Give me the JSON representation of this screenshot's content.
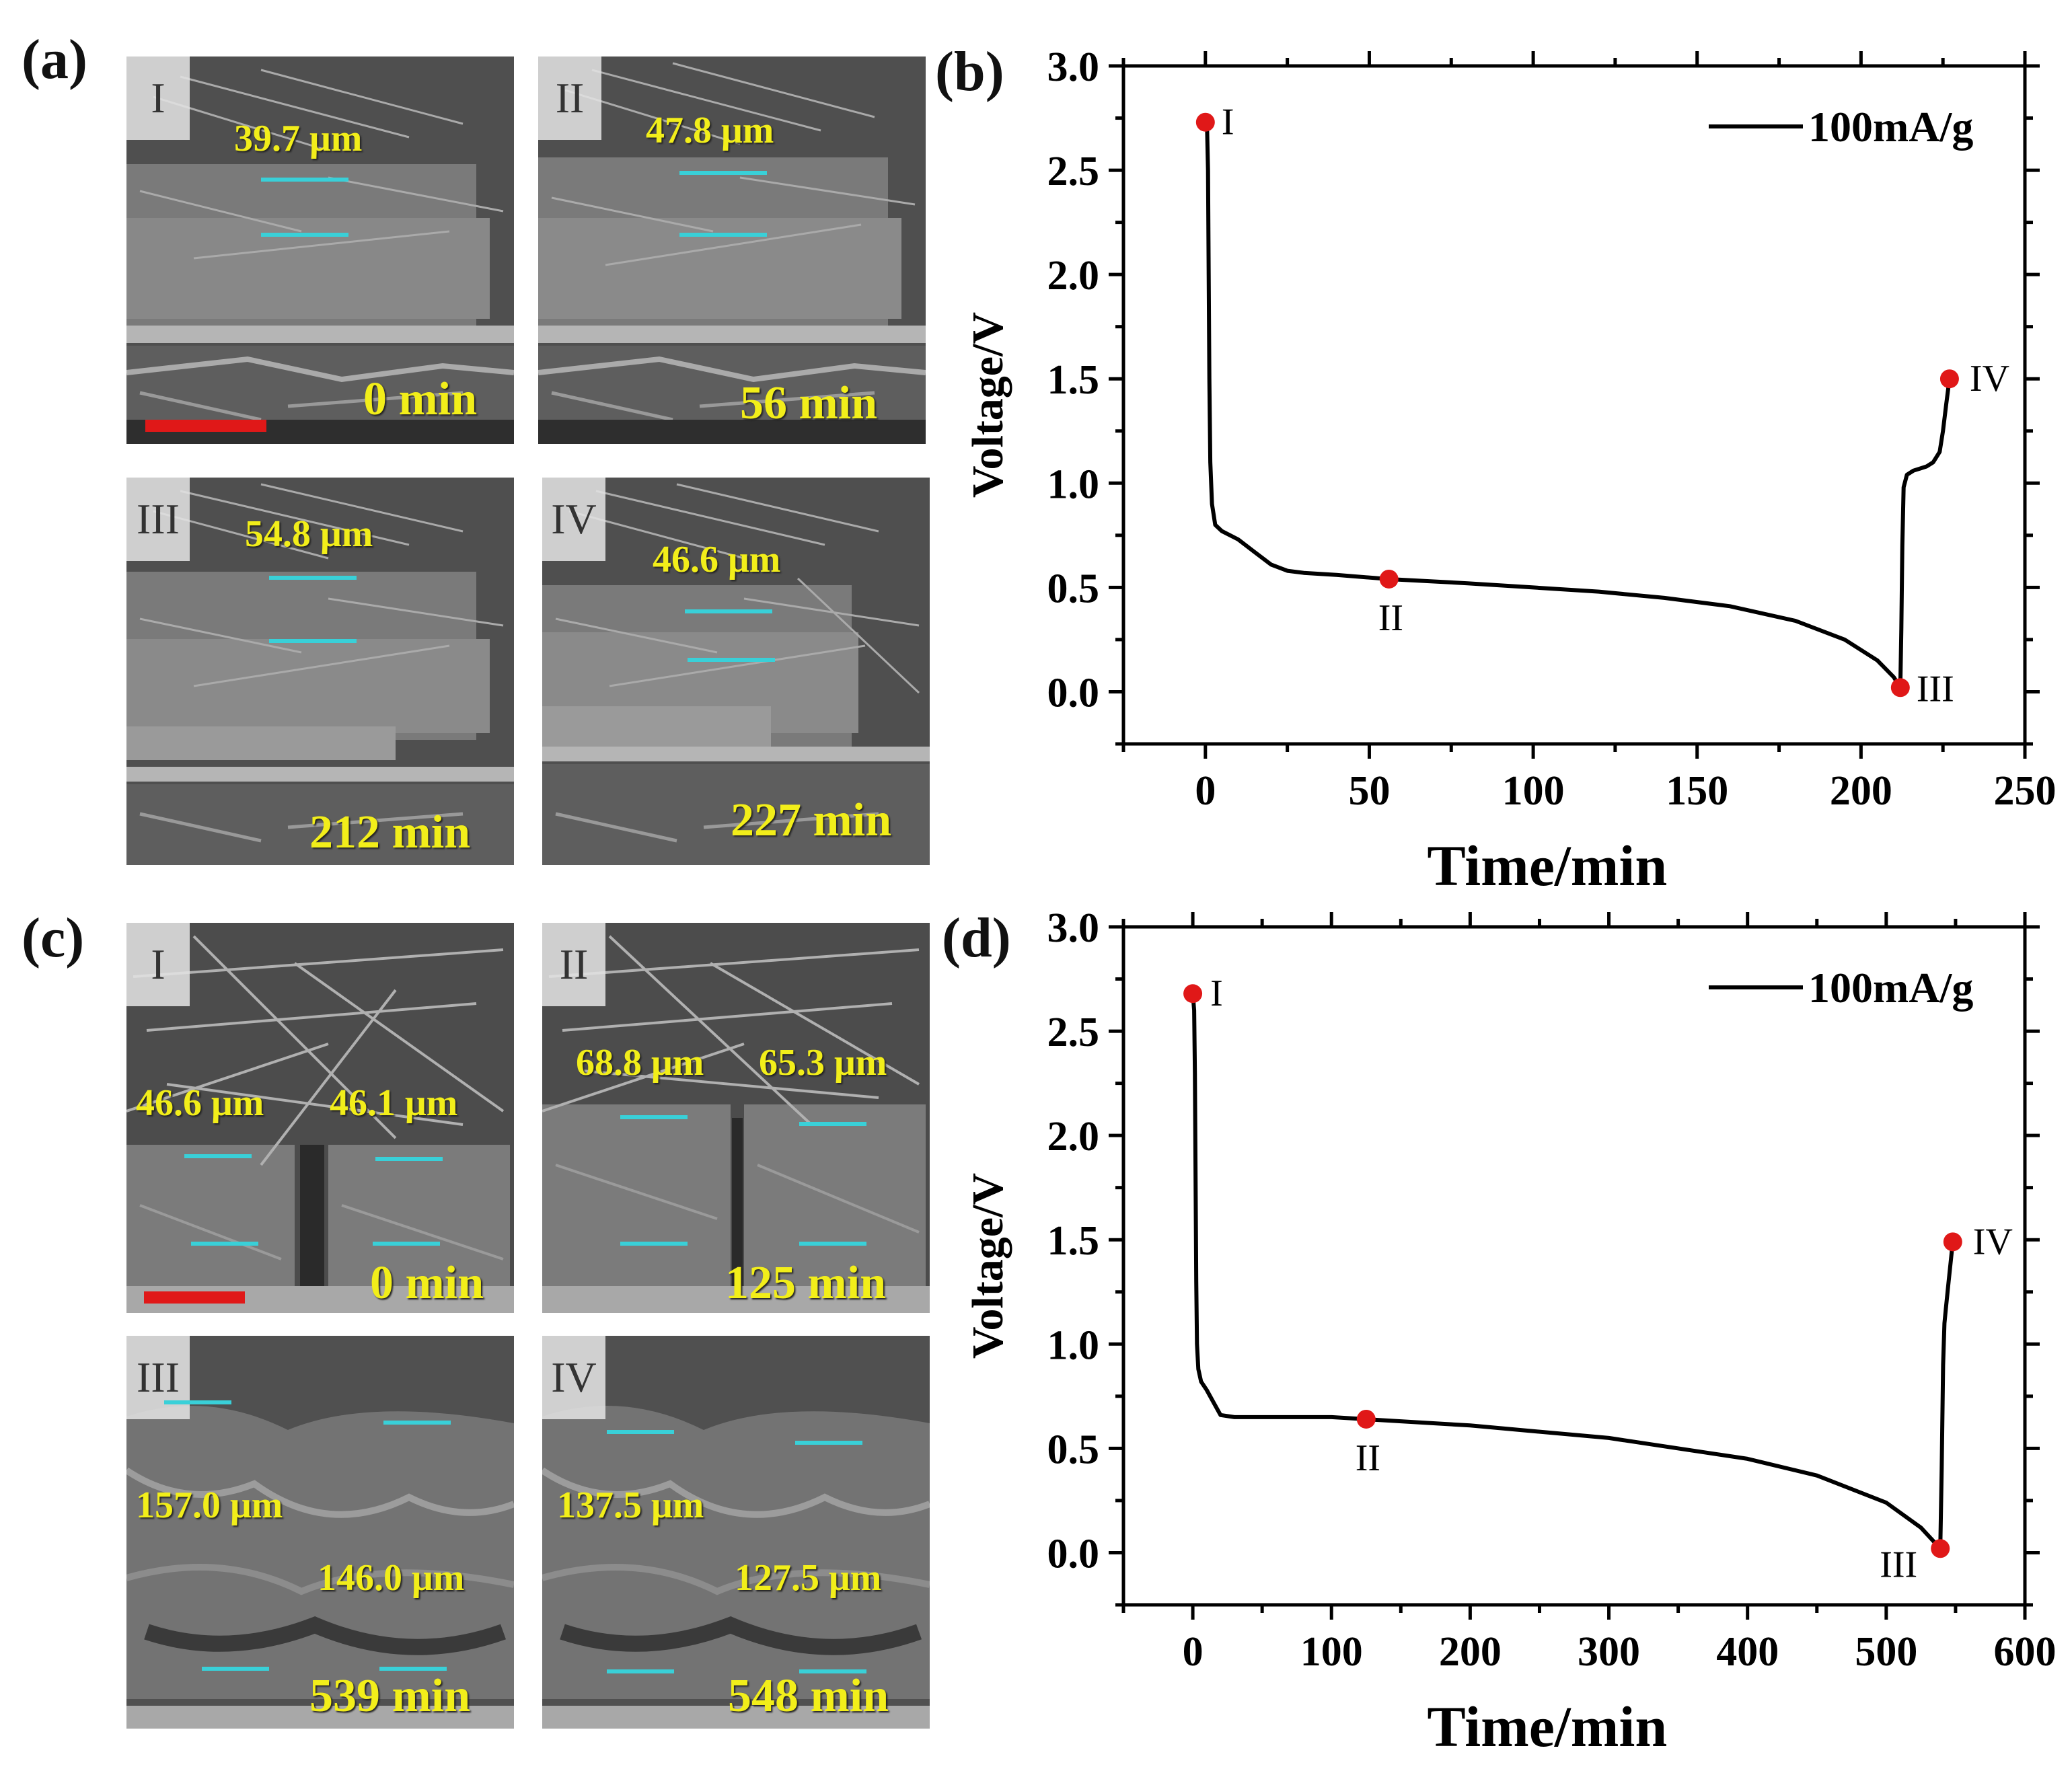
{
  "panels": {
    "a": {
      "letter": "(a)"
    },
    "b": {
      "letter": "(b)"
    },
    "c": {
      "letter": "(c)"
    },
    "d": {
      "letter": "(d)"
    }
  },
  "sem_a": [
    {
      "roman": "I",
      "measurements": [
        "39.7 μm"
      ],
      "time": "0 min",
      "has_scalebar": true
    },
    {
      "roman": "II",
      "measurements": [
        "47.8 μm"
      ],
      "time": "56 min",
      "has_scalebar": false
    },
    {
      "roman": "III",
      "measurements": [
        "54.8 μm"
      ],
      "time": "212 min",
      "has_scalebar": false
    },
    {
      "roman": "IV",
      "measurements": [
        "46.6 μm"
      ],
      "time": "227 min",
      "has_scalebar": false
    }
  ],
  "sem_c": [
    {
      "roman": "I",
      "measurements": [
        "46.6 μm",
        "46.1 μm"
      ],
      "time": "0 min",
      "has_scalebar": true
    },
    {
      "roman": "II",
      "measurements": [
        "68.8 μm",
        "65.3 μm"
      ],
      "time": "125 min",
      "has_scalebar": false
    },
    {
      "roman": "III",
      "measurements": [
        "157.0 μm",
        "146.0 μm"
      ],
      "time": "539 min",
      "has_scalebar": false
    },
    {
      "roman": "IV",
      "measurements": [
        "137.5 μm",
        "127.5 μm"
      ],
      "time": "548 min",
      "has_scalebar": false
    }
  ],
  "colors": {
    "curve": "#000000",
    "marker": "#e01818",
    "measure_text": "#f2ee1a",
    "measure_line": "#39d0d8",
    "scalebar": "#e01818"
  },
  "chart_data": [
    {
      "panel": "b",
      "type": "line",
      "xlabel": "Time/min",
      "ylabel": "Voltage/V",
      "xlim": [
        -25,
        250
      ],
      "ylim": [
        -0.25,
        3.0
      ],
      "xticks": [
        0,
        50,
        100,
        150,
        200,
        250
      ],
      "yticks": [
        0.0,
        0.5,
        1.0,
        1.5,
        2.0,
        2.5,
        3.0
      ],
      "legend": {
        "label": "100mA/g",
        "position": "top-right"
      },
      "series": [
        {
          "name": "100mA/g",
          "x": [
            0,
            0.5,
            0.8,
            1.0,
            1.2,
            1.5,
            2,
            3,
            5,
            10,
            15,
            20,
            25,
            30,
            40,
            56,
            80,
            100,
            120,
            140,
            160,
            180,
            195,
            205,
            210,
            212,
            212.3,
            212.6,
            213,
            214,
            216,
            218,
            220,
            222,
            224,
            225,
            226,
            227
          ],
          "y": [
            2.73,
            2.7,
            2.5,
            2.0,
            1.5,
            1.1,
            0.9,
            0.8,
            0.77,
            0.73,
            0.67,
            0.61,
            0.58,
            0.57,
            0.56,
            0.54,
            0.52,
            0.5,
            0.48,
            0.45,
            0.41,
            0.34,
            0.25,
            0.15,
            0.07,
            0.02,
            0.3,
            0.7,
            0.98,
            1.04,
            1.06,
            1.07,
            1.08,
            1.1,
            1.15,
            1.25,
            1.38,
            1.5
          ]
        }
      ],
      "markers": [
        {
          "label": "I",
          "x": 0,
          "y": 2.73
        },
        {
          "label": "II",
          "x": 56,
          "y": 0.54
        },
        {
          "label": "III",
          "x": 212,
          "y": 0.02
        },
        {
          "label": "IV",
          "x": 227,
          "y": 1.5
        }
      ]
    },
    {
      "panel": "d",
      "type": "line",
      "xlabel": "Time/min",
      "ylabel": "Voltage/V",
      "xlim": [
        -50,
        600
      ],
      "ylim": [
        -0.25,
        3.0
      ],
      "xticks": [
        0,
        100,
        200,
        300,
        400,
        500,
        600
      ],
      "yticks": [
        0.0,
        0.5,
        1.0,
        1.5,
        2.0,
        2.5,
        3.0
      ],
      "legend": {
        "label": "100mA/g",
        "position": "top-right"
      },
      "series": [
        {
          "name": "100mA/g",
          "x": [
            0,
            1,
            1.5,
            2,
            2.5,
            3,
            4,
            6,
            10,
            15,
            20,
            30,
            60,
            100,
            125,
            200,
            300,
            400,
            450,
            500,
            525,
            539,
            540,
            541,
            542,
            543,
            545,
            548
          ],
          "y": [
            2.68,
            2.6,
            2.3,
            1.8,
            1.3,
            1.0,
            0.88,
            0.82,
            0.78,
            0.72,
            0.66,
            0.65,
            0.65,
            0.65,
            0.64,
            0.61,
            0.55,
            0.45,
            0.37,
            0.24,
            0.12,
            0.02,
            0.4,
            0.9,
            1.1,
            1.17,
            1.3,
            1.49
          ]
        }
      ],
      "markers": [
        {
          "label": "I",
          "x": 0,
          "y": 2.68
        },
        {
          "label": "II",
          "x": 125,
          "y": 0.64
        },
        {
          "label": "III",
          "x": 539,
          "y": 0.02
        },
        {
          "label": "IV",
          "x": 548,
          "y": 1.49
        }
      ]
    }
  ]
}
